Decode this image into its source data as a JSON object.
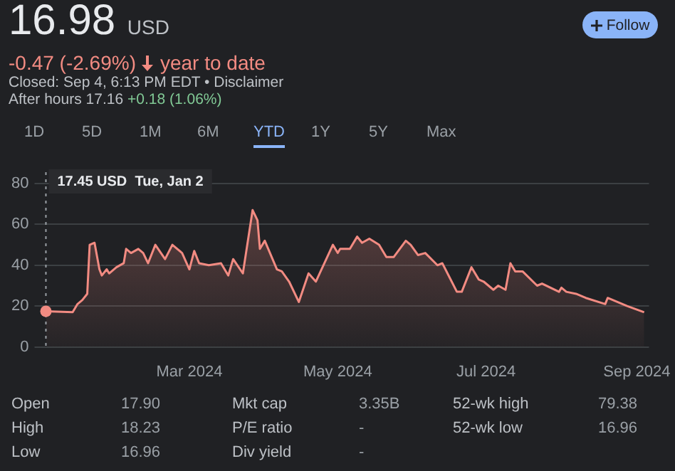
{
  "chart_data": {
    "type": "area",
    "title": "16.98",
    "x": [
      "2024-01-02",
      "2024-01-13",
      "2024-01-15",
      "2024-01-17",
      "2024-01-19",
      "2024-01-20",
      "2024-01-22",
      "2024-01-24",
      "2024-01-25",
      "2024-01-27",
      "2024-01-28",
      "2024-01-31",
      "2024-02-03",
      "2024-02-04",
      "2024-02-06",
      "2024-02-09",
      "2024-02-11",
      "2024-02-13",
      "2024-02-16",
      "2024-02-20",
      "2024-02-23",
      "2024-02-27",
      "2024-03-01",
      "2024-03-03",
      "2024-03-05",
      "2024-03-09",
      "2024-03-14",
      "2024-03-17",
      "2024-03-19",
      "2024-03-23",
      "2024-03-27",
      "2024-03-29",
      "2024-03-30",
      "2024-04-01",
      "2024-04-06",
      "2024-04-08",
      "2024-04-11",
      "2024-04-15",
      "2024-04-19",
      "2024-04-22",
      "2024-04-29",
      "2024-05-01",
      "2024-05-02",
      "2024-05-06",
      "2024-05-09",
      "2024-05-11",
      "2024-05-14",
      "2024-05-18",
      "2024-05-21",
      "2024-05-24",
      "2024-05-29",
      "2024-05-31",
      "2024-06-03",
      "2024-06-06",
      "2024-06-11",
      "2024-06-13",
      "2024-06-16",
      "2024-06-19",
      "2024-06-21",
      "2024-06-25",
      "2024-06-28",
      "2024-06-30",
      "2024-07-04",
      "2024-07-06",
      "2024-07-09",
      "2024-07-11",
      "2024-07-13",
      "2024-07-16",
      "2024-07-22",
      "2024-07-24",
      "2024-07-31",
      "2024-08-01",
      "2024-08-03",
      "2024-08-07",
      "2024-08-11",
      "2024-08-19",
      "2024-08-20",
      "2024-08-24",
      "2024-08-28",
      "2024-09-04"
    ],
    "series": [
      {
        "color": "#f28b82",
        "values": [
          17.45,
          17,
          21,
          23,
          26,
          50,
          51,
          38,
          35,
          38,
          36,
          39,
          41,
          48,
          46,
          48,
          46,
          41,
          50,
          43,
          50,
          46,
          38,
          47,
          41,
          40,
          41,
          35,
          43,
          36,
          67,
          62,
          48,
          52,
          38,
          37,
          32,
          22,
          36,
          32,
          50,
          46,
          48,
          48,
          54,
          51,
          53,
          50,
          44,
          44,
          52,
          50,
          45,
          46,
          40,
          41,
          34,
          27,
          27,
          39,
          33,
          32,
          28,
          30,
          28,
          41,
          37,
          37,
          30,
          31,
          27,
          29,
          27,
          26,
          24,
          21,
          24,
          22,
          20,
          16.98
        ]
      }
    ],
    "xlim": [
      "2024-01-02",
      "2024-09-06"
    ],
    "xticks": [
      {
        "value": "2024-03-01",
        "label": "Mar 2024"
      },
      {
        "value": "2024-05-01",
        "label": "May 2024"
      },
      {
        "value": "2024-07-01",
        "label": "Jul 2024"
      },
      {
        "value": "2024-09-01",
        "label": "Sep 2024"
      }
    ],
    "ylim": [
      0,
      80
    ],
    "yticks": [
      0,
      20,
      40,
      60,
      80
    ],
    "grid": "y",
    "legend": false,
    "marker": "none",
    "ref_lines": [
      {
        "axis": "x",
        "value": "2024-01-02",
        "line_style": "dotted",
        "color": "#9aa0a6"
      }
    ],
    "annotations": [
      "USD",
      "-0.47 (-2.69%)",
      "year to date",
      "Closed: Sep 4, 6:13 PM EDT • Disclaimer",
      "After hours 17.16",
      "+0.18 (1.06%)",
      "Follow",
      "1D",
      "5D",
      "1M",
      "6M",
      "YTD",
      "1Y",
      "5Y",
      "Max",
      "Open",
      "17.90",
      "High",
      "18.23",
      "Low",
      "16.96",
      "Mkt cap",
      "3.35B",
      "P/E ratio",
      "-",
      "Div yield",
      "-",
      "52-wk high",
      "79.38",
      "52-wk low",
      "16.96",
      "17.45 USD  Tue, Jan 2"
    ]
  }
}
